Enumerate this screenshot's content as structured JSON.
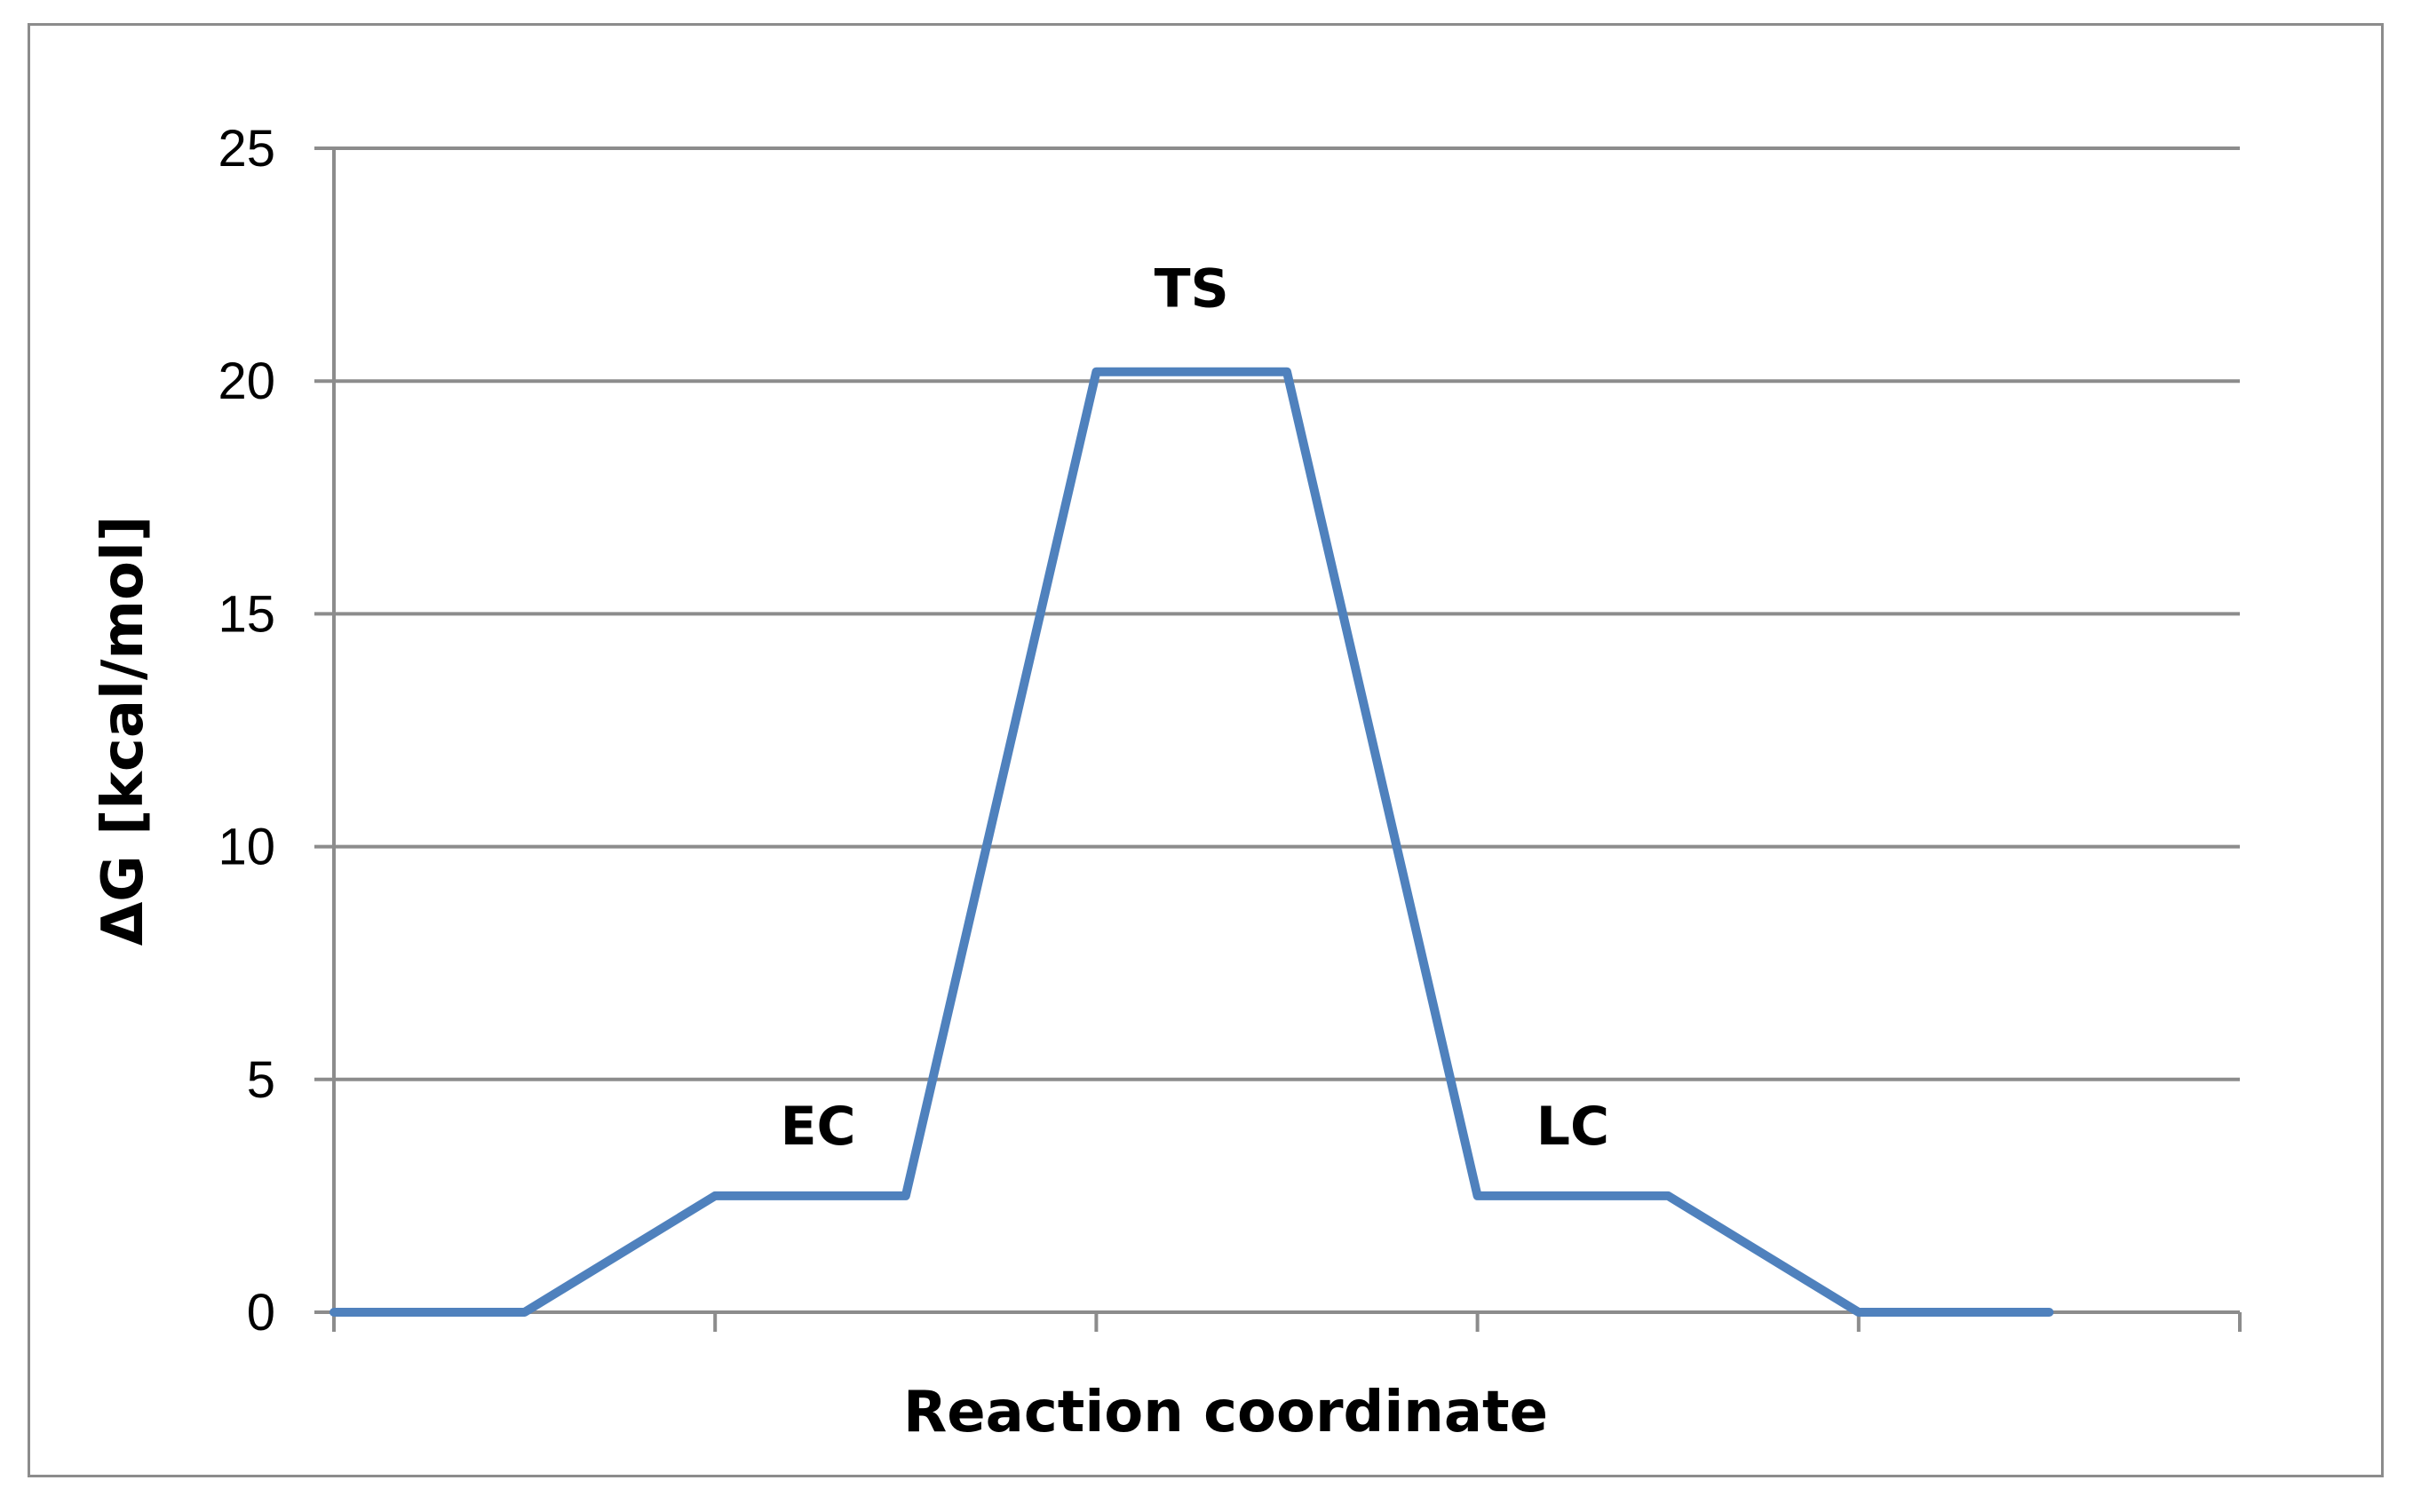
{
  "chart_data": {
    "type": "line",
    "title": "",
    "xlabel": "Reaction coordinate",
    "ylabel": "ΔG [kcal/mol]",
    "ylim": [
      0,
      25
    ],
    "yticks": [
      0,
      5,
      10,
      15,
      20,
      25
    ],
    "x_categories": 5,
    "grid": "horizontal",
    "legend": "none",
    "series": [
      {
        "color": "#4f81bd",
        "x": [
          0,
          0.5,
          1,
          1.5,
          2,
          2.5,
          3,
          3.5,
          4,
          4.5
        ],
        "values": [
          0,
          0,
          2.5,
          2.5,
          20.2,
          20.2,
          2.5,
          2.5,
          0,
          0
        ]
      }
    ],
    "annotations": [
      {
        "text": "EC",
        "x": 1.27,
        "y": 3.6
      },
      {
        "text": "TS",
        "x": 2.25,
        "y": 21.6
      },
      {
        "text": "LC",
        "x": 3.25,
        "y": 3.6
      }
    ]
  }
}
